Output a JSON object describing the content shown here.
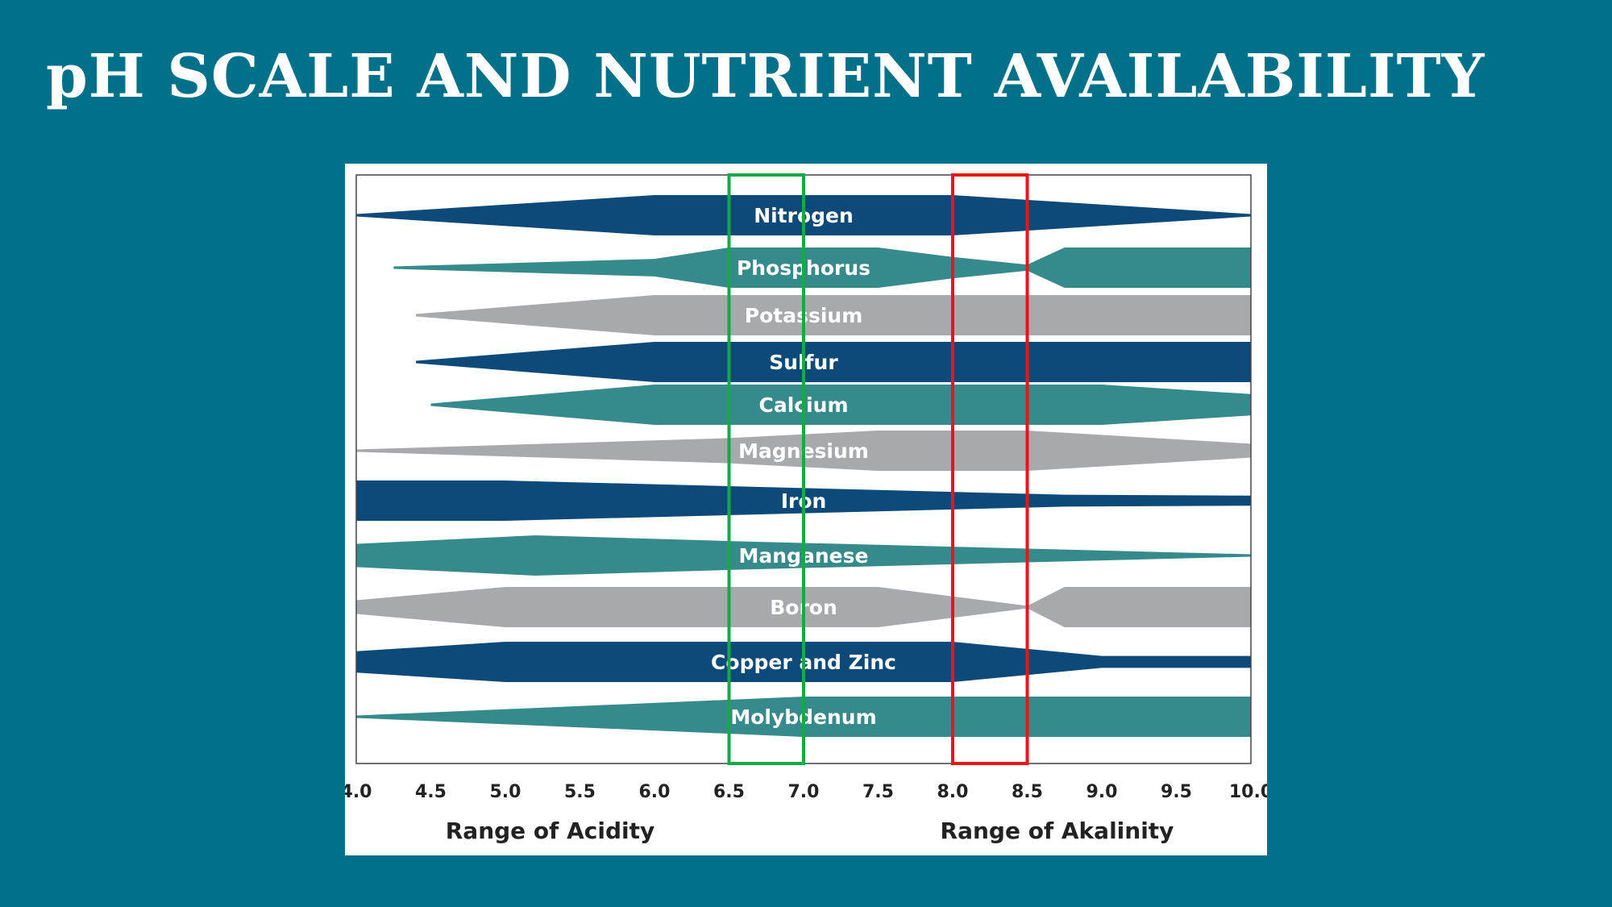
{
  "title": "pH SCALE AND NUTRIENT AVAILABILITY",
  "colors": {
    "background": "#007189",
    "panel": "#ffffff",
    "navy": "#0d4a7a",
    "teal": "#378a8b",
    "gray": "#a8a9ad",
    "optimal_box": "#18a84a",
    "alkaline_box": "#e8161b",
    "frame": "#444444"
  },
  "chart_data": {
    "type": "area",
    "xlim": [
      4.0,
      10.0
    ],
    "x_ticks": [
      "4.0",
      "4.5",
      "5.0",
      "5.5",
      "6.0",
      "6.5",
      "7.0",
      "7.5",
      "8.0",
      "8.5",
      "9.0",
      "9.5",
      "10.0"
    ],
    "range_labels": {
      "acidity": "Range of Acidity",
      "alkalinity": "Range of Akalinity"
    },
    "highlight_ranges": [
      {
        "from": 6.5,
        "to": 7.0,
        "color": "optimal_box"
      },
      {
        "from": 8.0,
        "to": 8.5,
        "color": "alkaline_box"
      }
    ],
    "series": [
      {
        "name": "Nitrogen",
        "color": "navy",
        "points": [
          [
            4.0,
            0.0
          ],
          [
            6.0,
            1.0
          ],
          [
            8.0,
            1.0
          ],
          [
            10.0,
            0.0
          ]
        ]
      },
      {
        "name": "Phosphorus",
        "color": "teal",
        "points": [
          [
            4.25,
            0.0
          ],
          [
            6.0,
            0.4
          ],
          [
            6.5,
            1.0
          ],
          [
            7.5,
            1.0
          ],
          [
            8.0,
            0.5
          ],
          [
            8.5,
            0.1
          ],
          [
            8.75,
            1.0
          ],
          [
            10.0,
            1.0
          ]
        ]
      },
      {
        "name": "Potassium",
        "color": "gray",
        "points": [
          [
            4.4,
            0.0
          ],
          [
            6.0,
            1.0
          ],
          [
            10.0,
            1.0
          ]
        ]
      },
      {
        "name": "Sulfur",
        "color": "navy",
        "points": [
          [
            4.4,
            0.0
          ],
          [
            6.0,
            1.0
          ],
          [
            10.0,
            1.0
          ]
        ]
      },
      {
        "name": "Calcium",
        "color": "teal",
        "points": [
          [
            4.5,
            0.0
          ],
          [
            6.0,
            1.0
          ],
          [
            9.0,
            1.0
          ],
          [
            10.0,
            0.5
          ]
        ]
      },
      {
        "name": "Magnesium",
        "color": "gray",
        "points": [
          [
            4.0,
            0.0
          ],
          [
            6.5,
            0.6
          ],
          [
            7.5,
            1.0
          ],
          [
            8.5,
            1.0
          ],
          [
            10.0,
            0.3
          ]
        ]
      },
      {
        "name": "Iron",
        "color": "navy",
        "points": [
          [
            4.0,
            1.0
          ],
          [
            5.0,
            1.0
          ],
          [
            8.75,
            0.25
          ],
          [
            10.0,
            0.2
          ]
        ]
      },
      {
        "name": "Manganese",
        "color": "teal",
        "points": [
          [
            4.0,
            0.55
          ],
          [
            5.2,
            1.0
          ],
          [
            6.5,
            0.7
          ],
          [
            10.0,
            0.0
          ]
        ]
      },
      {
        "name": "Boron",
        "color": "gray",
        "points": [
          [
            4.0,
            0.3
          ],
          [
            5.0,
            1.0
          ],
          [
            7.5,
            1.0
          ],
          [
            8.0,
            0.5
          ],
          [
            8.5,
            0.0
          ],
          [
            8.75,
            1.0
          ],
          [
            10.0,
            1.0
          ]
        ]
      },
      {
        "name": "Copper and Zinc",
        "color": "navy",
        "points": [
          [
            4.0,
            0.5
          ],
          [
            5.0,
            1.0
          ],
          [
            8.0,
            1.0
          ],
          [
            9.0,
            0.25
          ],
          [
            10.0,
            0.25
          ]
        ]
      },
      {
        "name": "Molybdenum",
        "color": "teal",
        "points": [
          [
            4.0,
            0.0
          ],
          [
            7.0,
            1.0
          ],
          [
            10.0,
            1.0
          ]
        ]
      }
    ]
  }
}
